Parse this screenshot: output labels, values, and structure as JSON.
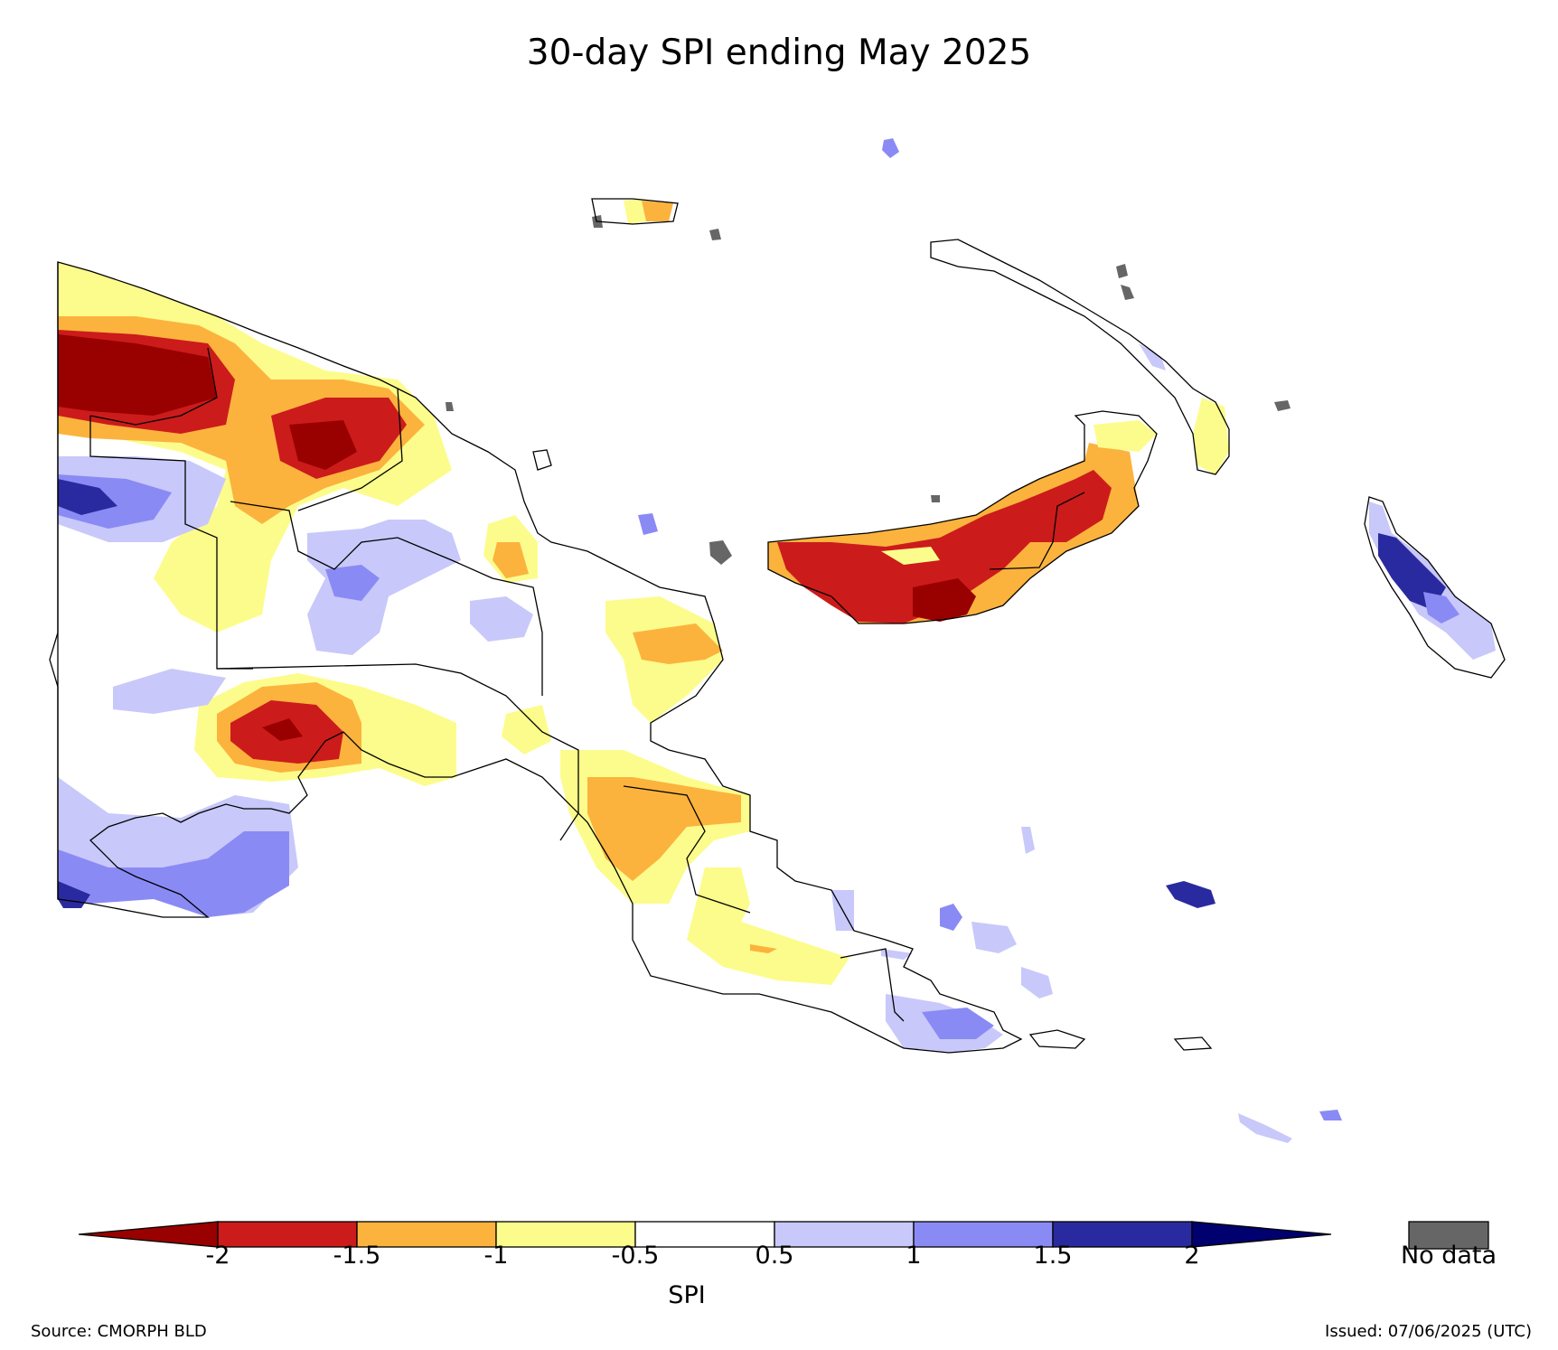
{
  "title": "30-day SPI ending May 2025",
  "colorbar": {
    "label": "SPI",
    "ticks": [
      "-2",
      "-1.5",
      "-1",
      "-0.5",
      "0.5",
      "1",
      "1.5",
      "2"
    ],
    "bins": [
      {
        "range": "< -2",
        "color": "#990000"
      },
      {
        "range": "-2 to -1.5",
        "color": "#cc1b1b"
      },
      {
        "range": "-1.5 to -1",
        "color": "#fbb33d"
      },
      {
        "range": "-1 to -0.5",
        "color": "#fcfc8c"
      },
      {
        "range": "-0.5 to 0.5",
        "color": "#ffffff"
      },
      {
        "range": "0.5 to 1",
        "color": "#c8c8fa"
      },
      {
        "range": "1 to 1.5",
        "color": "#8a8af5"
      },
      {
        "range": "1.5 to 2",
        "color": "#2a2aa0"
      },
      {
        "range": "> 2",
        "color": "#00006e"
      }
    ]
  },
  "no_data": {
    "label": "No data",
    "color": "#666666"
  },
  "footer": {
    "source": "Source: CMORPH BLD",
    "issued": "Issued: 07/06/2025 (UTC)"
  }
}
